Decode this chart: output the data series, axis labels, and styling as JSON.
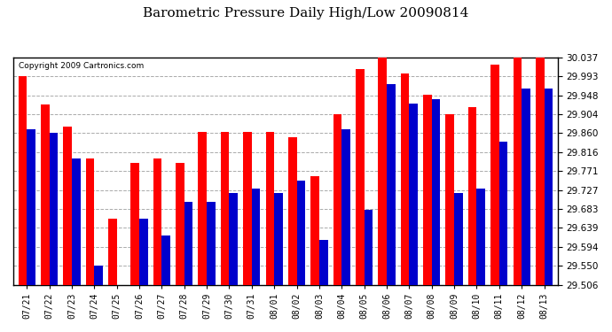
{
  "title": "Barometric Pressure Daily High/Low 20090814",
  "copyright_text": "Copyright 2009 Cartronics.com",
  "background_color": "#ffffff",
  "plot_bg_color": "#ffffff",
  "grid_color": "#aaaaaa",
  "bar_high_color": "#ff0000",
  "bar_low_color": "#0000cc",
  "ylim_min": 29.506,
  "ylim_max": 30.037,
  "yticks": [
    30.037,
    29.993,
    29.948,
    29.904,
    29.86,
    29.816,
    29.771,
    29.727,
    29.683,
    29.639,
    29.594,
    29.55,
    29.506
  ],
  "dates": [
    "07/21",
    "07/22",
    "07/23",
    "07/24",
    "07/25",
    "07/26",
    "07/27",
    "07/28",
    "07/29",
    "07/30",
    "07/31",
    "08/01",
    "08/02",
    "08/03",
    "08/04",
    "08/05",
    "08/06",
    "08/07",
    "08/08",
    "08/09",
    "08/10",
    "08/11",
    "08/12",
    "08/13"
  ],
  "highs": [
    29.993,
    29.927,
    29.875,
    29.8,
    29.66,
    29.79,
    29.8,
    29.79,
    29.863,
    29.863,
    29.863,
    29.863,
    29.85,
    29.76,
    29.904,
    30.01,
    30.037,
    30.0,
    29.95,
    29.905,
    29.92,
    30.02,
    30.037,
    30.037
  ],
  "lows": [
    29.87,
    29.86,
    29.8,
    29.55,
    29.506,
    29.66,
    29.62,
    29.7,
    29.7,
    29.72,
    29.73,
    29.72,
    29.75,
    29.61,
    29.87,
    29.68,
    29.975,
    29.93,
    29.94,
    29.72,
    29.73,
    29.84,
    29.965,
    29.965
  ]
}
